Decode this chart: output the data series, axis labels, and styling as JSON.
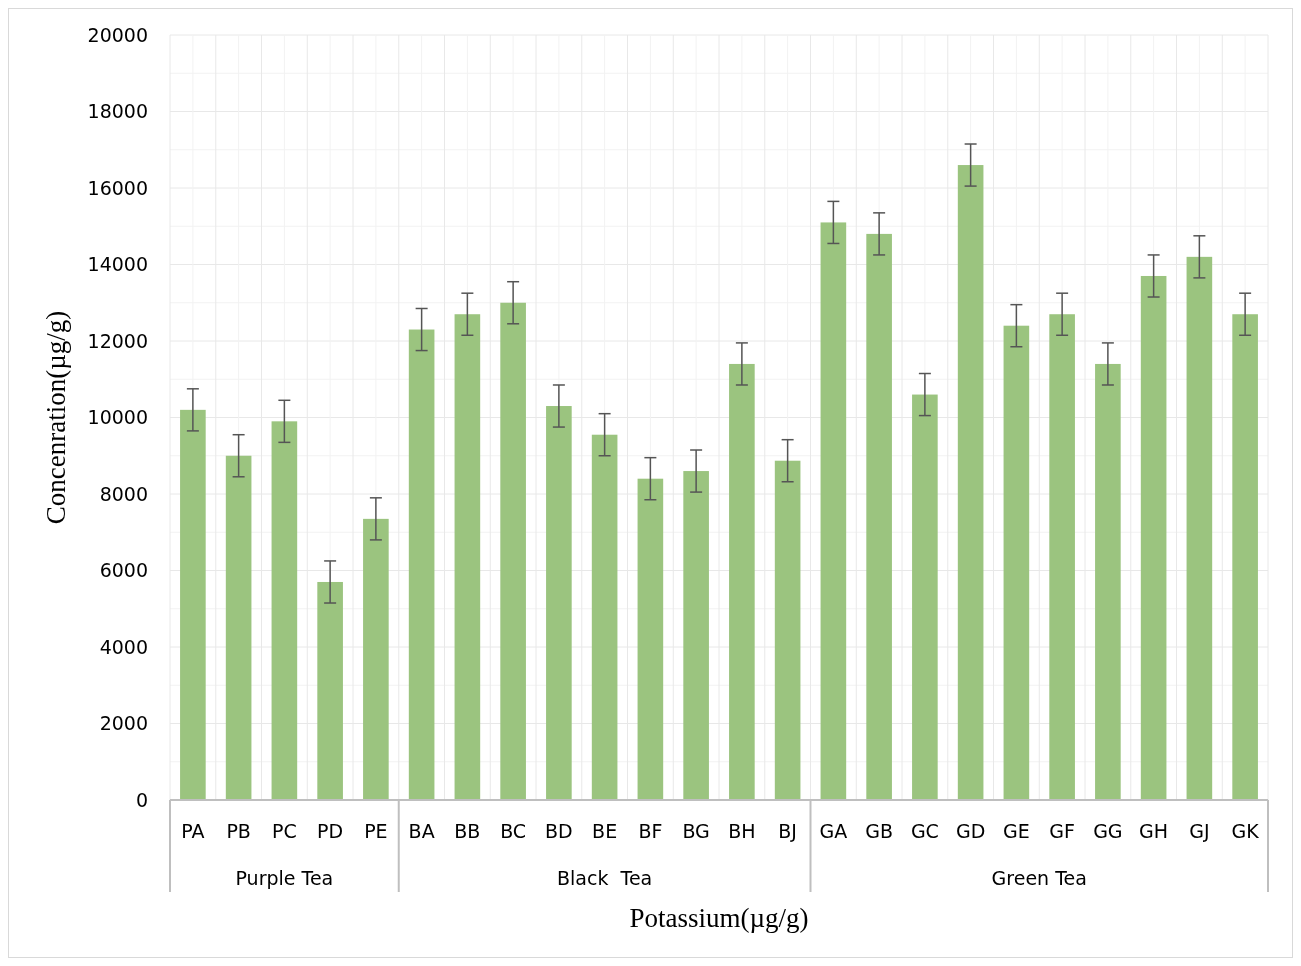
{
  "chart_data": {
    "type": "bar",
    "xlabel": "Potassium(µg/g)",
    "ylabel": "Concenration(µg/g)",
    "categories": [
      "PA",
      "PB",
      "PC",
      "PD",
      "PE",
      "BA",
      "BB",
      "BC",
      "BD",
      "BE",
      "BF",
      "BG",
      "BH",
      "BJ",
      "GA",
      "GB",
      "GC",
      "GD",
      "GE",
      "GF",
      "GG",
      "GH",
      "GJ",
      "GK"
    ],
    "values": [
      10200,
      9000,
      9900,
      5700,
      7350,
      12300,
      12700,
      13000,
      10300,
      9550,
      8400,
      8600,
      11400,
      8870,
      15100,
      14800,
      10600,
      16600,
      12400,
      12700,
      11400,
      13700,
      14200,
      12700
    ],
    "errors": [
      550,
      550,
      550,
      550,
      550,
      550,
      550,
      550,
      550,
      550,
      550,
      550,
      550,
      550,
      550,
      550,
      550,
      550,
      550,
      550,
      550,
      550,
      550,
      550
    ],
    "color": "#9bc47f",
    "ylim": [
      0,
      20000
    ],
    "yticks": [
      0,
      2000,
      4000,
      6000,
      8000,
      10000,
      12000,
      14000,
      16000,
      18000,
      20000
    ],
    "grid": true,
    "annotations": [
      "Purple Tea",
      "Black  Tea",
      "Green Tea"
    ]
  }
}
